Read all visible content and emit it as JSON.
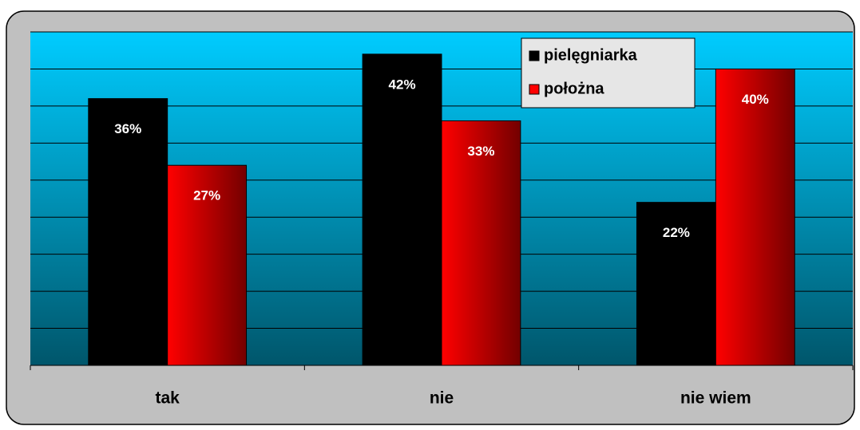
{
  "chart_data": {
    "type": "bar",
    "categories": [
      "tak",
      "nie",
      "nie wiem"
    ],
    "series": [
      {
        "name": "pielęgniarka",
        "color": "#000000",
        "values": [
          36,
          42,
          22
        ],
        "value_labels": [
          "36%",
          "42%",
          "22%"
        ]
      },
      {
        "name": "położna",
        "color": "#ff0000",
        "values": [
          27,
          33,
          40
        ],
        "value_labels": [
          "27%",
          "33%",
          "40%"
        ]
      }
    ],
    "ylim": [
      0,
      45
    ],
    "yticks": [
      0,
      5,
      10,
      15,
      20,
      25,
      30,
      35,
      40,
      45
    ],
    "grid": true,
    "legend": "top-right"
  }
}
